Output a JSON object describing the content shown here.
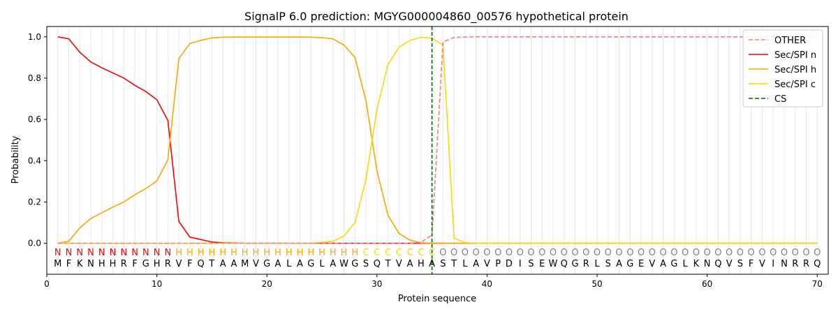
{
  "chart_data": {
    "type": "line",
    "title": "SignalP 6.0 prediction: MGYG000004860_00576 hypothetical protein",
    "xlabel": "Protein sequence",
    "ylabel": "Probability",
    "xlim": [
      0,
      71
    ],
    "ylim": [
      -0.15,
      1.05
    ],
    "x_ticks": [
      0,
      10,
      20,
      30,
      40,
      50,
      60,
      70
    ],
    "y_ticks": [
      0.0,
      0.2,
      0.4,
      0.6,
      0.8,
      1.0
    ],
    "x_tick_labels": [
      "0",
      "10",
      "20",
      "30",
      "40",
      "50",
      "60",
      "70"
    ],
    "y_tick_labels": [
      "0.0",
      "0.2",
      "0.4",
      "0.6",
      "0.8",
      "1.0"
    ],
    "grid": "vertical lines at each residue",
    "legend_position": "top-right",
    "sequence": [
      "M",
      "F",
      "K",
      "N",
      "H",
      "H",
      "R",
      "F",
      "G",
      "H",
      "R",
      "V",
      "F",
      "Q",
      "T",
      "A",
      "A",
      "M",
      "V",
      "G",
      "A",
      "L",
      "A",
      "G",
      "L",
      "A",
      "W",
      "G",
      "S",
      "Q",
      "T",
      "V",
      "A",
      "H",
      "A",
      "S",
      "T",
      "L",
      "A",
      "V",
      "P",
      "D",
      "I",
      "S",
      "E",
      "W",
      "Q",
      "G",
      "R",
      "L",
      "S",
      "A",
      "G",
      "E",
      "V",
      "A",
      "G",
      "L",
      "K",
      "N",
      "Q",
      "V",
      "S",
      "F",
      "V",
      "I",
      "N",
      "R",
      "R",
      "Q"
    ],
    "labels": [
      "N",
      "N",
      "N",
      "N",
      "N",
      "N",
      "N",
      "N",
      "N",
      "N",
      "N",
      "H",
      "H",
      "H",
      "H",
      "H",
      "H",
      "H",
      "H",
      "H",
      "H",
      "H",
      "H",
      "H",
      "H",
      "H",
      "H",
      "H",
      "C",
      "C",
      "C",
      "C",
      "C",
      "C",
      "C",
      "O",
      "O",
      "O",
      "O",
      "O",
      "O",
      "O",
      "O",
      "O",
      "O",
      "O",
      "O",
      "O",
      "O",
      "O",
      "O",
      "O",
      "O",
      "O",
      "O",
      "O",
      "O",
      "O",
      "O",
      "O",
      "O",
      "O",
      "O",
      "O",
      "O",
      "O",
      "O",
      "O",
      "O",
      "O"
    ],
    "label_colors": {
      "N": "#ff0000",
      "H": "#ffa500",
      "C": "#ffd700",
      "O": "#808080"
    },
    "cs_position": 35,
    "series": [
      {
        "name": "OTHER",
        "color": "#f08080",
        "dash": "dashed",
        "values": [
          0,
          0,
          0,
          0,
          0,
          0,
          0,
          0,
          0,
          0,
          0,
          0,
          0,
          0,
          0,
          0,
          0,
          0,
          0,
          0,
          0,
          0,
          0,
          0,
          0,
          0,
          0,
          0,
          0,
          0,
          0,
          0,
          0,
          0.005,
          0.04,
          0.975,
          0.997,
          0.999,
          1,
          1,
          1,
          1,
          1,
          1,
          1,
          1,
          1,
          1,
          1,
          1,
          1,
          1,
          1,
          1,
          1,
          1,
          1,
          1,
          1,
          1,
          1,
          1,
          1,
          1,
          1,
          1,
          1,
          1,
          1,
          1
        ]
      },
      {
        "name": "Sec/SPI n",
        "color": "#ff0000",
        "dash": "solid",
        "values": [
          1.0,
          0.99,
          0.925,
          0.878,
          0.85,
          0.825,
          0.8,
          0.765,
          0.735,
          0.695,
          0.595,
          0.105,
          0.03,
          0.018,
          0.006,
          0.002,
          0.001,
          0,
          0,
          0,
          0,
          0,
          0,
          0,
          0,
          0,
          0,
          0,
          0,
          0,
          0,
          0,
          0,
          0,
          0,
          0,
          0,
          0,
          0,
          0,
          0,
          0,
          0,
          0,
          0,
          0,
          0,
          0,
          0,
          0,
          0,
          0,
          0,
          0,
          0,
          0,
          0,
          0,
          0,
          0,
          0,
          0,
          0,
          0,
          0,
          0,
          0,
          0,
          0,
          0
        ]
      },
      {
        "name": "Sec/SPI h",
        "color": "#ffa500",
        "dash": "solid",
        "values": [
          0,
          0.01,
          0.075,
          0.12,
          0.148,
          0.175,
          0.2,
          0.235,
          0.265,
          0.302,
          0.405,
          0.895,
          0.968,
          0.983,
          0.995,
          0.998,
          0.999,
          0.999,
          0.999,
          0.999,
          0.999,
          0.999,
          0.999,
          0.998,
          0.996,
          0.99,
          0.96,
          0.9,
          0.69,
          0.35,
          0.135,
          0.048,
          0.015,
          0.002,
          0.001,
          0,
          0,
          0,
          0,
          0,
          0,
          0,
          0,
          0,
          0,
          0,
          0,
          0,
          0,
          0,
          0,
          0,
          0,
          0,
          0,
          0,
          0,
          0,
          0,
          0,
          0,
          0,
          0,
          0,
          0,
          0,
          0,
          0,
          0,
          0
        ]
      },
      {
        "name": "Sec/SPI c",
        "color": "#ffd700",
        "dash": "solid",
        "values": [
          0,
          0,
          0,
          0,
          0,
          0,
          0,
          0,
          0,
          0,
          0,
          0,
          0,
          0,
          0,
          0,
          0,
          0,
          0,
          0,
          0,
          0,
          0,
          0,
          0.005,
          0.01,
          0.035,
          0.1,
          0.31,
          0.65,
          0.865,
          0.95,
          0.983,
          0.998,
          0.993,
          0.96,
          0.025,
          0.003,
          0,
          0,
          0,
          0,
          0,
          0,
          0,
          0,
          0,
          0,
          0,
          0,
          0,
          0,
          0,
          0,
          0,
          0,
          0,
          0,
          0,
          0,
          0,
          0,
          0,
          0,
          0,
          0,
          0,
          0,
          0,
          0
        ]
      }
    ],
    "cs_series": {
      "name": "CS",
      "color": "#006400",
      "dash": "dashed"
    }
  }
}
